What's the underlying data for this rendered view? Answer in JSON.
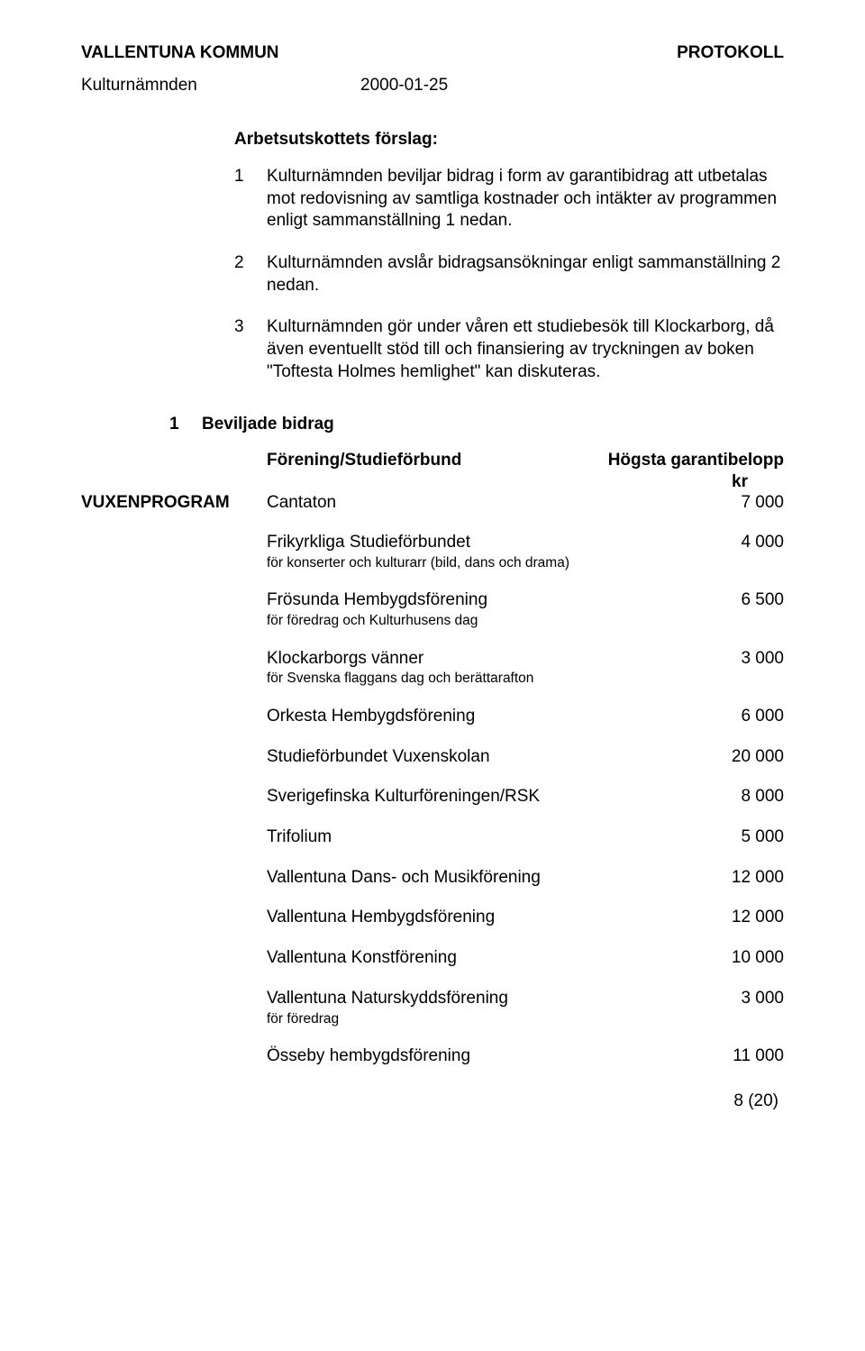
{
  "header": {
    "org": "VALLENTUNA KOMMUN",
    "doc": "PROTOKOLL",
    "committee": "Kulturnämnden",
    "date": "2000-01-25"
  },
  "proposal": {
    "title": "Arbetsutskottets förslag:",
    "items": [
      {
        "n": "1",
        "text": "Kulturnämnden beviljar bidrag i form av garantibidrag att utbetalas mot redovisning av samtliga kostnader och intäkter av programmen enligt sammanställning 1 nedan."
      },
      {
        "n": "2",
        "text": "Kulturnämnden avslår bidragsansökningar enligt sammanställning 2 nedan."
      },
      {
        "n": "3",
        "text": "Kulturnämnden gör under våren ett studiebesök till Klockarborg, då även eventuellt stöd till och finansiering av tryckningen av boken \"Toftesta Holmes hemlighet\" kan diskuteras."
      }
    ]
  },
  "approved": {
    "n": "1",
    "label": "Beviljade bidrag",
    "col1": "Förening/Studieförbund",
    "col2": "Högsta garantibelopp",
    "col2sub": "kr",
    "category": "VUXENPROGRAM",
    "rows": [
      {
        "name": "Cantaton",
        "note": "",
        "amount": "7 000",
        "category": "VUXENPROGRAM"
      },
      {
        "name": "Frikyrkliga Studieförbundet",
        "note": "för konserter och kulturarr (bild, dans och drama)",
        "amount": "4 000"
      },
      {
        "name": "Frösunda Hembygdsförening",
        "note": "för föredrag och Kulturhusens dag",
        "amount": "6 500"
      },
      {
        "name": "Klockarborgs vänner",
        "note": "för Svenska flaggans dag och berättarafton",
        "amount": "3 000"
      },
      {
        "name": "Orkesta Hembygdsförening",
        "note": "",
        "amount": "6 000"
      },
      {
        "name": "Studieförbundet Vuxenskolan",
        "note": "",
        "amount": "20 000"
      },
      {
        "name": "Sverigefinska Kulturföreningen/RSK",
        "note": "",
        "amount": "8 000"
      },
      {
        "name": "Trifolium",
        "note": "",
        "amount": "5 000"
      },
      {
        "name": "Vallentuna Dans- och Musikförening",
        "note": "",
        "amount": "12 000"
      },
      {
        "name": "Vallentuna Hembygdsförening",
        "note": "",
        "amount": "12 000"
      },
      {
        "name": "Vallentuna Konstförening",
        "note": "",
        "amount": "10 000"
      },
      {
        "name": "Vallentuna Naturskyddsförening",
        "note": "för föredrag",
        "amount": "3 000"
      },
      {
        "name": "Össeby hembygdsförening",
        "note": "",
        "amount": "11 000"
      }
    ]
  },
  "footer": "8 (20)"
}
